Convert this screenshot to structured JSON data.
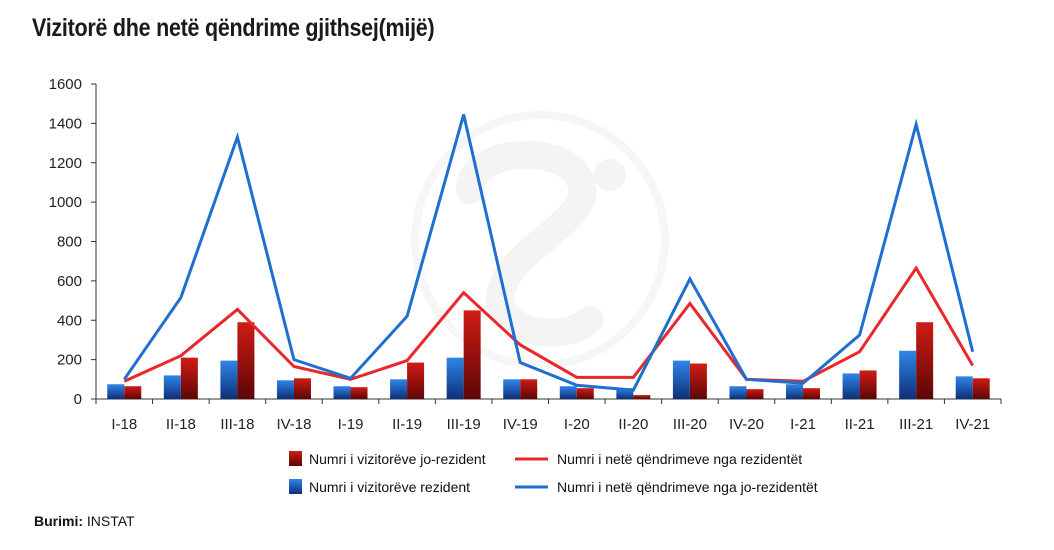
{
  "title": "Vizitorë dhe netë qëndrime gjithsej(mijë)",
  "source_label": "Burimi",
  "source_value": "INSTAT",
  "colors": {
    "bar_nonresident": "#b0100e",
    "bar_resident": "#1b66c9",
    "line_resident_nights": "#e8282b",
    "line_nonresident_nights": "#1e6fd0",
    "axis": "#333333"
  },
  "chart_data": {
    "type": "bar",
    "categories": [
      "I-18",
      "II-18",
      "III-18",
      "IV-18",
      "I-19",
      "II-19",
      "III-19",
      "IV-19",
      "I-20",
      "II-20",
      "III-20",
      "IV-20",
      "I-21",
      "II-21",
      "III-21",
      "IV-21"
    ],
    "ylim": [
      0,
      1600
    ],
    "yticks": [
      0,
      200,
      400,
      600,
      800,
      1000,
      1200,
      1400,
      1600
    ],
    "grid": false,
    "legend_position": "bottom",
    "bars": [
      {
        "name": "Numri i vizitorëve rezident",
        "color_key": "bar_resident",
        "values": [
          75,
          120,
          195,
          95,
          65,
          100,
          210,
          100,
          65,
          55,
          195,
          65,
          75,
          130,
          245,
          115
        ]
      },
      {
        "name": "Numri i vizitorëve jo-rezident",
        "color_key": "bar_nonresident",
        "values": [
          65,
          210,
          390,
          105,
          60,
          185,
          450,
          100,
          55,
          20,
          180,
          50,
          55,
          145,
          390,
          105
        ]
      }
    ],
    "lines": [
      {
        "name": "Numri i netë qëndrimeve nga rezidentët",
        "color_key": "line_resident_nights",
        "values": [
          90,
          220,
          455,
          165,
          100,
          195,
          540,
          275,
          110,
          110,
          485,
          100,
          90,
          240,
          665,
          170
        ]
      },
      {
        "name": "Numri i netë qëndrimeve nga jo-rezidentët",
        "color_key": "line_nonresident_nights",
        "values": [
          100,
          515,
          1330,
          200,
          105,
          420,
          1445,
          185,
          70,
          45,
          610,
          100,
          80,
          325,
          1395,
          240
        ]
      }
    ],
    "legend": [
      {
        "label": "Numri i vizitorëve jo-rezident",
        "kind": "bar",
        "color_key": "bar_nonresident"
      },
      {
        "label": "Numri i netë qëndrimeve nga rezidentët",
        "kind": "line",
        "color_key": "line_resident_nights"
      },
      {
        "label": "Numri i vizitorëve rezident",
        "kind": "bar",
        "color_key": "bar_resident"
      },
      {
        "label": "Numri i netë qëndrimeve nga jo-rezidentët",
        "kind": "line",
        "color_key": "line_nonresident_nights"
      }
    ]
  }
}
